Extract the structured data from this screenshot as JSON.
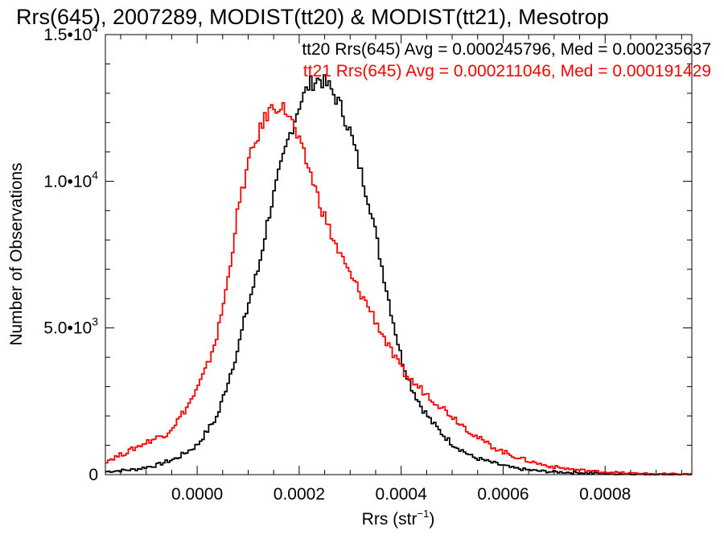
{
  "chart_data": {
    "type": "line",
    "title": "Rrs(645), 2007289, MODIST(tt20) & MODIST(tt21), Mesotrop",
    "xlabel_main": "Rrs (str",
    "xlabel_sup": "−1",
    "xlabel_end": ")",
    "ylabel": "Number of Observations",
    "xlim": [
      -0.00018,
      0.00097
    ],
    "ylim": [
      0,
      15000
    ],
    "grid": false,
    "legend_placement": "top-right",
    "x_ticks": [
      {
        "value": 0.0,
        "label": "0.0000"
      },
      {
        "value": 0.0002,
        "label": "0.0002"
      },
      {
        "value": 0.0004,
        "label": "0.0004"
      },
      {
        "value": 0.0006,
        "label": "0.0006"
      },
      {
        "value": 0.0008,
        "label": "0.0008"
      }
    ],
    "y_ticks": [
      {
        "value": 0,
        "mant": "0",
        "exp": ""
      },
      {
        "value": 5000,
        "mant": "5.0•10",
        "exp": "3"
      },
      {
        "value": 10000,
        "mant": "1.0•10",
        "exp": "4"
      },
      {
        "value": 15000,
        "mant": "1.5•10",
        "exp": "4"
      }
    ],
    "series": [
      {
        "name": "tt20",
        "legend": "tt20 Rrs(645) Avg = 0.000245796, Med = 0.000235637",
        "color": "#000000",
        "points": [
          [
            -0.00018,
            100
          ],
          [
            -0.00012,
            180
          ],
          [
            -8e-05,
            320
          ],
          [
            -4e-05,
            560
          ],
          [
            0.0,
            1000
          ],
          [
            4e-05,
            2000
          ],
          [
            8e-05,
            4300
          ],
          [
            0.0001,
            5800
          ],
          [
            0.00012,
            7000
          ],
          [
            0.00014,
            8800
          ],
          [
            0.00016,
            10200
          ],
          [
            0.00018,
            11500
          ],
          [
            0.0002,
            12600
          ],
          [
            0.00022,
            13300
          ],
          [
            0.00024,
            13500
          ],
          [
            0.00026,
            13200
          ],
          [
            0.00028,
            12600
          ],
          [
            0.0003,
            11700
          ],
          [
            0.00032,
            10400
          ],
          [
            0.00034,
            9100
          ],
          [
            0.00036,
            7300
          ],
          [
            0.00038,
            5600
          ],
          [
            0.0004,
            4000
          ],
          [
            0.00042,
            3000
          ],
          [
            0.00044,
            2300
          ],
          [
            0.00046,
            1800
          ],
          [
            0.00048,
            1400
          ],
          [
            0.0005,
            1050
          ],
          [
            0.00054,
            600
          ],
          [
            0.00058,
            400
          ],
          [
            0.00062,
            220
          ],
          [
            0.00066,
            140
          ],
          [
            0.0007,
            90
          ],
          [
            0.00076,
            60
          ],
          [
            0.00082,
            30
          ],
          [
            0.00088,
            15
          ],
          [
            0.00097,
            5
          ]
        ]
      },
      {
        "name": "tt21",
        "legend": "tt21 Rrs(645) Avg = 0.000211046, Med = 0.000191429",
        "color": "#ff0000",
        "points": [
          [
            -0.00018,
            450
          ],
          [
            -0.00014,
            750
          ],
          [
            -0.0001,
            1100
          ],
          [
            -6e-05,
            1400
          ],
          [
            -4e-05,
            1800
          ],
          [
            -2e-05,
            2300
          ],
          [
            0.0,
            2900
          ],
          [
            2e-05,
            3700
          ],
          [
            4e-05,
            4800
          ],
          [
            6e-05,
            6600
          ],
          [
            8e-05,
            9000
          ],
          [
            0.0001,
            10600
          ],
          [
            0.00012,
            11600
          ],
          [
            0.00014,
            12400
          ],
          [
            0.00016,
            12600
          ],
          [
            0.00018,
            12300
          ],
          [
            0.0002,
            11300
          ],
          [
            0.00022,
            10400
          ],
          [
            0.00024,
            9300
          ],
          [
            0.00026,
            8300
          ],
          [
            0.00028,
            7500
          ],
          [
            0.0003,
            6800
          ],
          [
            0.00032,
            6200
          ],
          [
            0.00034,
            5600
          ],
          [
            0.00036,
            4900
          ],
          [
            0.00038,
            4200
          ],
          [
            0.0004,
            3600
          ],
          [
            0.00042,
            3200
          ],
          [
            0.00044,
            2900
          ],
          [
            0.00046,
            2600
          ],
          [
            0.00048,
            2300
          ],
          [
            0.0005,
            2000
          ],
          [
            0.00052,
            1700
          ],
          [
            0.00054,
            1400
          ],
          [
            0.00056,
            1150
          ],
          [
            0.00058,
            950
          ],
          [
            0.0006,
            780
          ],
          [
            0.00062,
            640
          ],
          [
            0.00064,
            520
          ],
          [
            0.00066,
            420
          ],
          [
            0.00068,
            330
          ],
          [
            0.0007,
            260
          ],
          [
            0.00074,
            170
          ],
          [
            0.00078,
            110
          ],
          [
            0.00082,
            70
          ],
          [
            0.00086,
            40
          ],
          [
            0.0009,
            25
          ],
          [
            0.00097,
            10
          ]
        ]
      }
    ]
  }
}
